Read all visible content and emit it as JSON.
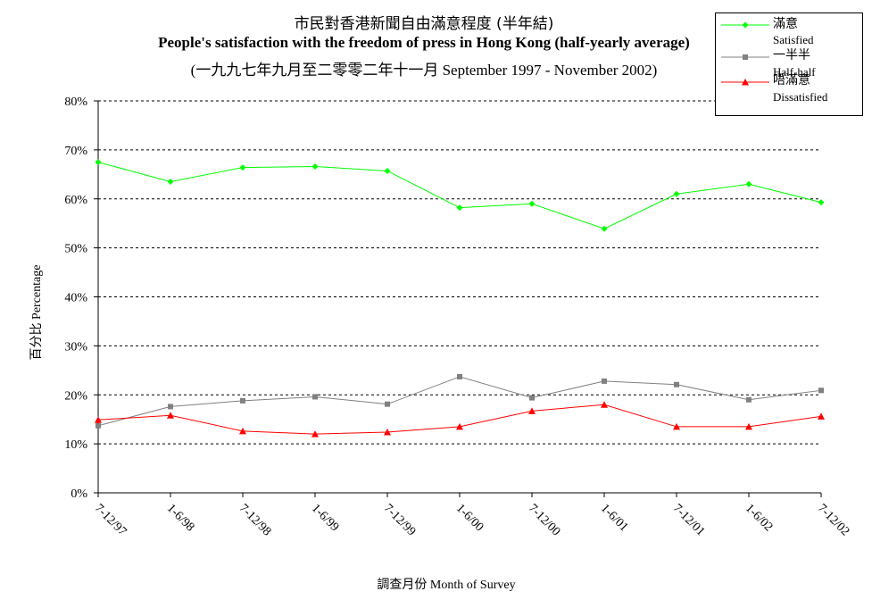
{
  "chart_data": {
    "type": "line",
    "title_zh": "市民對香港新聞自由滿意程度 (半年結)",
    "title_en": "People's satisfaction with the freedom of press in Hong Kong (half-yearly average)",
    "subtitle": "(一九九七年九月至二零零二年十一月 September 1997 - November 2002)",
    "xlabel_zh": "調查月份",
    "xlabel_en": "Month of Survey",
    "ylabel_zh": "百分比",
    "ylabel_en": "Percentage",
    "categories": [
      "7-12/97",
      "1-6/98",
      "7-12/98",
      "1-6/99",
      "7-12/99",
      "1-6/00",
      "7-12/00",
      "1-6/01",
      "7-12/01",
      "1-6/02",
      "7-12/02"
    ],
    "yticks": [
      "0%",
      "10%",
      "20%",
      "30%",
      "40%",
      "50%",
      "60%",
      "70%",
      "80%"
    ],
    "ylim": [
      0,
      80
    ],
    "grid": true,
    "legend_position": "top-right",
    "series": [
      {
        "name_zh": "滿意",
        "name_en": "Satisfied",
        "color": "#00ff00",
        "marker": "diamond",
        "values": [
          67.5,
          63.5,
          66.4,
          66.6,
          65.7,
          58.2,
          59.0,
          53.9,
          61.0,
          63.0,
          59.3
        ]
      },
      {
        "name_zh": "一半半",
        "name_en": "Half-half",
        "color": "#808080",
        "marker": "square",
        "values": [
          13.7,
          17.6,
          18.8,
          19.6,
          18.1,
          23.7,
          19.4,
          22.8,
          22.1,
          19.0,
          20.9
        ]
      },
      {
        "name_zh": "唔滿意",
        "name_en": "Dissatisfied",
        "color": "#ff0000",
        "marker": "triangle",
        "values": [
          14.9,
          15.8,
          12.6,
          12.0,
          12.4,
          13.5,
          16.7,
          18.0,
          13.5,
          13.5,
          15.6
        ]
      }
    ]
  }
}
